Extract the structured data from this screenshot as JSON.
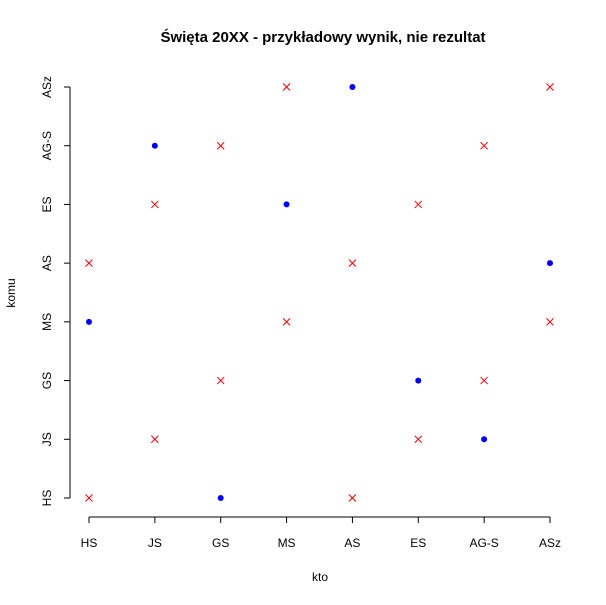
{
  "chart_data": {
    "type": "scatter",
    "title": "Święta 20XX - przykładowy wynik, nie rezultat",
    "xlabel": "kto",
    "ylabel": "komu",
    "x_categories": [
      "HS",
      "JS",
      "GS",
      "MS",
      "AS",
      "ES",
      "AG-S",
      "ASz"
    ],
    "y_categories": [
      "HS",
      "JS",
      "GS",
      "MS",
      "AS",
      "ES",
      "AG-S",
      "ASz"
    ],
    "grid": false,
    "series": [
      {
        "marker": "dot",
        "color": "#0000ff",
        "points": [
          {
            "x": "HS",
            "y": "MS"
          },
          {
            "x": "JS",
            "y": "AG-S"
          },
          {
            "x": "GS",
            "y": "HS"
          },
          {
            "x": "MS",
            "y": "ES"
          },
          {
            "x": "AS",
            "y": "ASz"
          },
          {
            "x": "ES",
            "y": "GS"
          },
          {
            "x": "AG-S",
            "y": "JS"
          },
          {
            "x": "ASz",
            "y": "AS"
          }
        ]
      },
      {
        "marker": "cross",
        "color": "#ff0000",
        "points": [
          {
            "x": "HS",
            "y": "HS"
          },
          {
            "x": "HS",
            "y": "AS"
          },
          {
            "x": "JS",
            "y": "JS"
          },
          {
            "x": "JS",
            "y": "ES"
          },
          {
            "x": "GS",
            "y": "GS"
          },
          {
            "x": "GS",
            "y": "AG-S"
          },
          {
            "x": "MS",
            "y": "MS"
          },
          {
            "x": "MS",
            "y": "ASz"
          },
          {
            "x": "AS",
            "y": "HS"
          },
          {
            "x": "AS",
            "y": "AS"
          },
          {
            "x": "ES",
            "y": "JS"
          },
          {
            "x": "ES",
            "y": "ES"
          },
          {
            "x": "AG-S",
            "y": "GS"
          },
          {
            "x": "AG-S",
            "y": "AG-S"
          },
          {
            "x": "ASz",
            "y": "MS"
          },
          {
            "x": "ASz",
            "y": "ASz"
          }
        ]
      }
    ]
  }
}
